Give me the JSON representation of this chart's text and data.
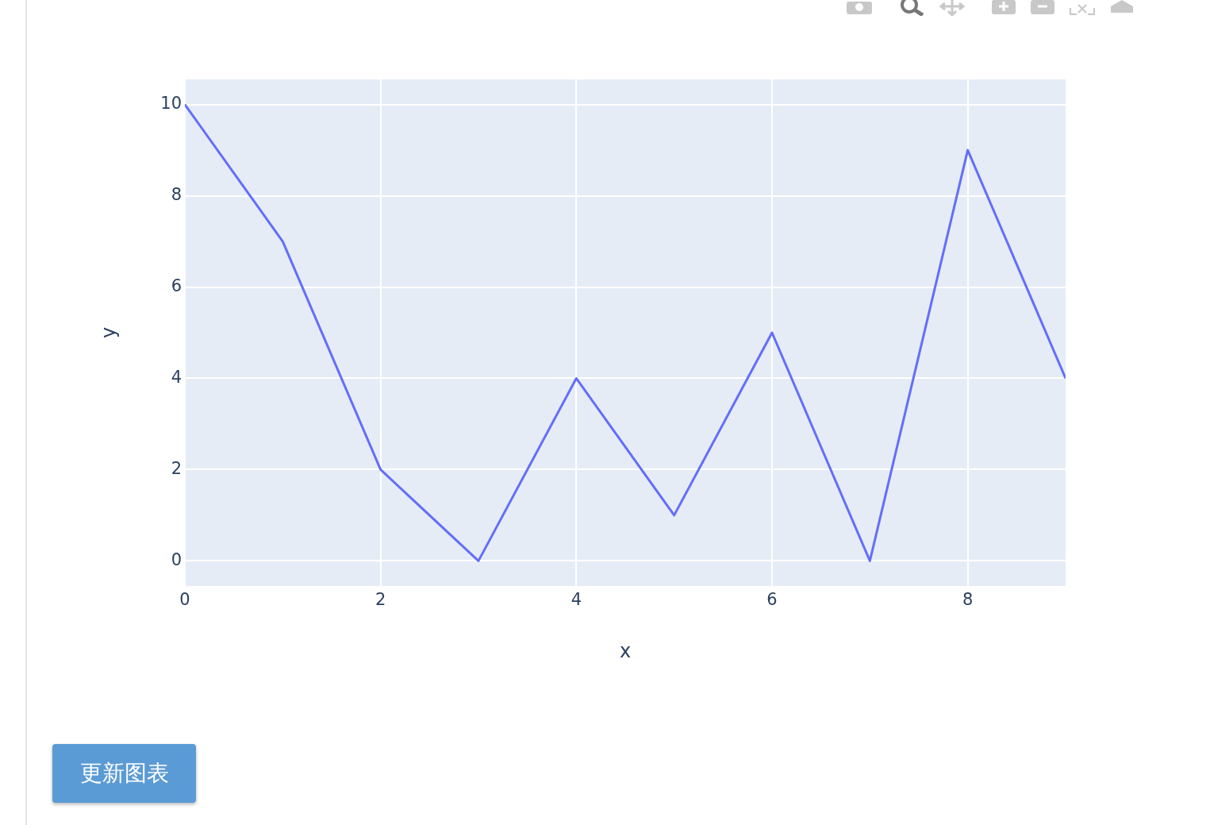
{
  "chart_data": {
    "type": "line",
    "xlabel": "x",
    "ylabel": "y",
    "x": [
      0,
      1,
      2,
      3,
      4,
      5,
      6,
      7,
      8,
      9
    ],
    "series": [
      {
        "color": "#636efa",
        "values": [
          10,
          7,
          2,
          0,
          4,
          1,
          5,
          0,
          9,
          4
        ]
      }
    ],
    "xlim": [
      0,
      9
    ],
    "xticks": [
      0,
      2,
      4,
      6,
      8
    ],
    "ylim": [
      -0.55,
      10.55
    ],
    "yticks": [
      0,
      2,
      4,
      6,
      8,
      10
    ],
    "grid": true,
    "legend": false,
    "marker": "none",
    "line_style": "solid",
    "annotations": [
      "更新图表"
    ]
  }
}
